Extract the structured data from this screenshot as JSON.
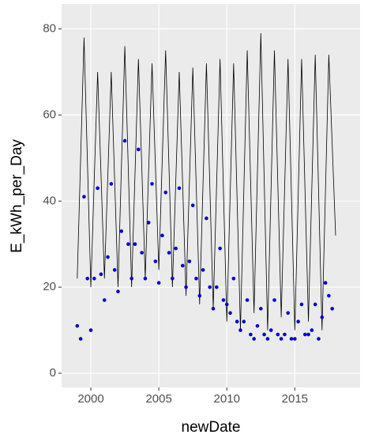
{
  "chart_data": {
    "type": "line",
    "x_label": "newDate",
    "y_label": "E_kWh_per_Day",
    "xlim": [
      1997.85,
      2019.8
    ],
    "xticks": [
      2000,
      2005,
      2010,
      2015
    ],
    "ylim": [
      -3.3,
      85.8
    ],
    "yticks": [
      0,
      20,
      40,
      60,
      80
    ],
    "grid": true,
    "background": "#ebebeb",
    "series": [
      {
        "type": "line",
        "color": "#000000",
        "x": [
          1999.0,
          1999.5,
          2000.0,
          2000.5,
          2001.0,
          2001.5,
          2002.0,
          2002.5,
          2003.0,
          2003.5,
          2004.0,
          2004.5,
          2005.0,
          2005.5,
          2006.0,
          2006.5,
          2007.0,
          2007.5,
          2008.0,
          2008.5,
          2009.0,
          2009.5,
          2010.0,
          2010.5,
          2011.0,
          2011.5,
          2012.0,
          2012.5,
          2013.0,
          2013.5,
          2014.0,
          2014.5,
          2015.0,
          2015.5,
          2016.0,
          2016.5,
          2017.0,
          2017.5,
          2018.0
        ],
        "values": [
          22,
          78,
          20,
          70,
          22,
          70,
          20,
          76,
          20,
          73,
          22,
          72,
          24,
          75,
          20,
          70,
          18,
          71,
          16,
          72,
          15,
          73,
          12,
          72,
          10,
          75,
          14,
          79,
          10,
          75,
          13,
          73,
          10,
          73,
          12,
          74,
          10,
          74,
          32
        ]
      },
      {
        "type": "scatter",
        "color": "#0000cc",
        "x": [
          1999.0,
          1999.25,
          1999.5,
          1999.75,
          2000.0,
          2000.25,
          2000.5,
          2000.75,
          2001.0,
          2001.25,
          2001.5,
          2001.75,
          2002.0,
          2002.25,
          2002.5,
          2002.75,
          2003.0,
          2003.25,
          2003.5,
          2003.75,
          2004.0,
          2004.25,
          2004.5,
          2004.75,
          2005.0,
          2005.25,
          2005.5,
          2005.75,
          2006.0,
          2006.25,
          2006.5,
          2006.75,
          2007.0,
          2007.25,
          2007.5,
          2007.75,
          2008.0,
          2008.25,
          2008.5,
          2008.75,
          2009.0,
          2009.25,
          2009.5,
          2009.75,
          2010.0,
          2010.25,
          2010.5,
          2010.75,
          2011.0,
          2011.25,
          2011.5,
          2011.75,
          2012.0,
          2012.25,
          2012.5,
          2012.75,
          2013.0,
          2013.25,
          2013.5,
          2013.75,
          2014.0,
          2014.25,
          2014.5,
          2014.75,
          2015.0,
          2015.25,
          2015.5,
          2015.75,
          2016.0,
          2016.25,
          2016.5,
          2016.75,
          2017.0,
          2017.25,
          2017.5,
          2017.75
        ],
        "values": [
          11,
          8,
          41,
          22,
          10,
          22,
          43,
          23,
          17,
          27,
          44,
          24,
          19,
          33,
          54,
          30,
          22,
          30,
          52,
          28,
          22,
          35,
          44,
          26,
          21,
          32,
          42,
          28,
          22,
          29,
          43,
          25,
          20,
          26,
          39,
          22,
          18,
          24,
          36,
          20,
          15,
          20,
          29,
          17,
          16,
          14,
          22,
          12,
          10,
          12,
          17,
          9,
          8,
          11,
          15,
          9,
          8,
          10,
          17,
          9,
          8,
          9,
          14,
          8,
          8,
          12,
          16,
          9,
          9,
          10,
          16,
          8,
          13,
          21,
          18,
          15
        ]
      }
    ]
  }
}
